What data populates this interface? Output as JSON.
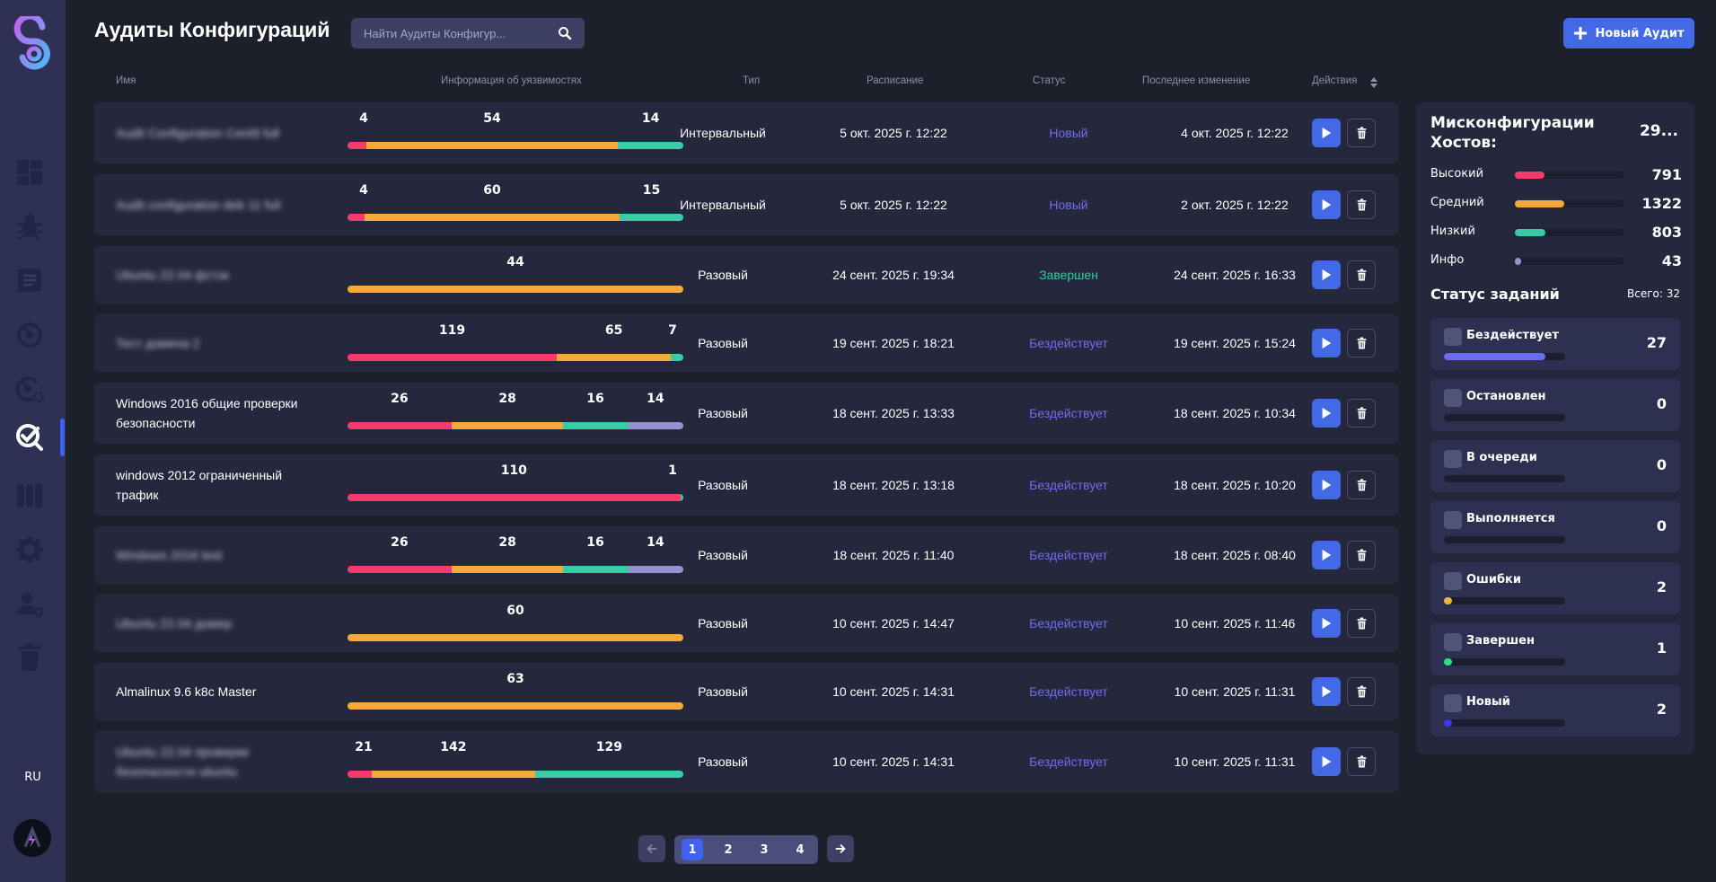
{
  "app": {
    "title": "Аудиты Конфигураций",
    "language": "RU"
  },
  "search": {
    "placeholder": "Найти Аудиты Конфигур..."
  },
  "toolbar": {
    "new_audit_label": "Новый Аудит"
  },
  "colors": {
    "high": "#f53b6b",
    "medium": "#f5a83a",
    "low": "#36cca6",
    "info": "#9392cc",
    "accent": "#4469e6"
  },
  "table": {
    "columns": {
      "name": "Имя",
      "vuln": "Информация об уязвимостях",
      "type": "Тип",
      "schedule": "Расписание",
      "status": "Статус",
      "modified": "Последнее изменение",
      "actions": "Действия"
    },
    "rows": [
      {
        "name": "Audit Configuration Cent9 full",
        "blurred": true,
        "vuln": {
          "high": 4,
          "medium": 54,
          "low": 14,
          "info": 0
        },
        "type": "Интервальный",
        "schedule": "5 окт. 2025 г. 12:22",
        "status": "Новый",
        "status_kind": "new",
        "modified": "4 окт. 2025 г. 12:22"
      },
      {
        "name": "Audit configuration deb 11 full",
        "blurred": true,
        "vuln": {
          "high": 4,
          "medium": 60,
          "low": 15,
          "info": 0
        },
        "type": "Интервальный",
        "schedule": "5 окт. 2025 г. 12:22",
        "status": "Новый",
        "status_kind": "new",
        "modified": "2 окт. 2025 г. 12:22"
      },
      {
        "name": "Ubuntu 22.04 фстэк",
        "blurred": true,
        "vuln": {
          "high": 0,
          "medium": 44,
          "low": 0,
          "info": 0
        },
        "type": "Разовый",
        "schedule": "24 сент. 2025 г. 19:34",
        "status": "Завершен",
        "status_kind": "done",
        "modified": "24 сент. 2025 г. 16:33"
      },
      {
        "name": "Тест доменa 2",
        "blurred": true,
        "vuln": {
          "high": 119,
          "medium": 65,
          "low": 7,
          "info": 0
        },
        "type": "Разовый",
        "schedule": "19 сент. 2025 г. 18:21",
        "status": "Бездействует",
        "status_kind": "idle",
        "modified": "19 сент. 2025 г. 15:24"
      },
      {
        "name": "Windows 2016 общие проверки безопасности",
        "blurred": false,
        "vuln": {
          "high": 26,
          "medium": 28,
          "low": 16,
          "info": 14
        },
        "type": "Разовый",
        "schedule": "18 сент. 2025 г. 13:33",
        "status": "Бездействует",
        "status_kind": "idle",
        "modified": "18 сент. 2025 г. 10:34"
      },
      {
        "name": "windows 2012 ограниченный трафик",
        "blurred": false,
        "vuln": {
          "high": 110,
          "medium": 0,
          "low": 1,
          "info": 0
        },
        "type": "Разовый",
        "schedule": "18 сент. 2025 г. 13:18",
        "status": "Бездействует",
        "status_kind": "idle",
        "modified": "18 сент. 2025 г. 10:20"
      },
      {
        "name": "Windows 2016 test",
        "blurred": true,
        "vuln": {
          "high": 26,
          "medium": 28,
          "low": 16,
          "info": 14
        },
        "type": "Разовый",
        "schedule": "18 сент. 2025 г. 11:40",
        "status": "Бездействует",
        "status_kind": "idle",
        "modified": "18 сент. 2025 г. 08:40"
      },
      {
        "name": "Ubuntu 22.04 домер",
        "blurred": true,
        "vuln": {
          "high": 0,
          "medium": 60,
          "low": 0,
          "info": 0
        },
        "type": "Разовый",
        "schedule": "10 сент. 2025 г. 14:47",
        "status": "Бездействует",
        "status_kind": "idle",
        "modified": "10 сент. 2025 г. 11:46"
      },
      {
        "name": "Almalinux 9.6 k8c Master",
        "blurred": false,
        "vuln": {
          "high": 0,
          "medium": 63,
          "low": 0,
          "info": 0
        },
        "type": "Разовый",
        "schedule": "10 сент. 2025 г. 14:31",
        "status": "Бездействует",
        "status_kind": "idle",
        "modified": "10 сент. 2025 г. 11:31"
      },
      {
        "name": "Ubuntu 22.04 проверки безопасности ubuntu",
        "blurred": true,
        "vuln": {
          "high": 21,
          "medium": 142,
          "low": 129,
          "info": 0
        },
        "type": "Разовый",
        "schedule": "10 сент. 2025 г. 14:31",
        "status": "Бездействует",
        "status_kind": "idle",
        "modified": "10 сент. 2025 г. 11:31"
      }
    ]
  },
  "pagination": {
    "pages": [
      "1",
      "2",
      "3",
      "4"
    ],
    "current": "1",
    "prev_disabled": true
  },
  "summary": {
    "title": "Мисконфигурации Хостов:",
    "total": "29...",
    "severities": [
      {
        "label": "Высокий",
        "value": "791",
        "fraction": 0.27,
        "color": "#f53b6b"
      },
      {
        "label": "Средний",
        "value": "1322",
        "fraction": 0.45,
        "color": "#f5a83a"
      },
      {
        "label": "Низкий",
        "value": "803",
        "fraction": 0.28,
        "color": "#36cca6"
      },
      {
        "label": "Инфо",
        "value": "43",
        "fraction": 0.015,
        "color": "#9392cc"
      }
    ],
    "tasks_title": "Статус заданий",
    "tasks_total": "Всего: 32",
    "tasks": [
      {
        "label": "Бездействует",
        "value": "27",
        "fraction": 0.84,
        "color": "#6c6cf0"
      },
      {
        "label": "Остановлен",
        "value": "0",
        "fraction": 0,
        "color": "#6c6cf0"
      },
      {
        "label": "В очереди",
        "value": "0",
        "fraction": 0,
        "color": "#6c6cf0"
      },
      {
        "label": "Выполняется",
        "value": "0",
        "fraction": 0,
        "color": "#6c6cf0"
      },
      {
        "label": "Ошибки",
        "value": "2",
        "fraction": 0.06,
        "color": "#f0b33c"
      },
      {
        "label": "Завершен",
        "value": "1",
        "fraction": 0.03,
        "color": "#2ee08a"
      },
      {
        "label": "Новый",
        "value": "2",
        "fraction": 0.06,
        "color": "#3a3ae6"
      }
    ]
  },
  "sidebar": {
    "items": [
      {
        "name": "dashboard-icon"
      },
      {
        "name": "bug-icon"
      },
      {
        "name": "document-icon"
      },
      {
        "name": "scan-icon"
      },
      {
        "name": "scan-settings-icon"
      },
      {
        "name": "config-audit-icon",
        "active": true
      },
      {
        "name": "columns-icon"
      },
      {
        "name": "gear-icon"
      },
      {
        "name": "user-settings-icon"
      },
      {
        "name": "trash-icon"
      }
    ]
  }
}
